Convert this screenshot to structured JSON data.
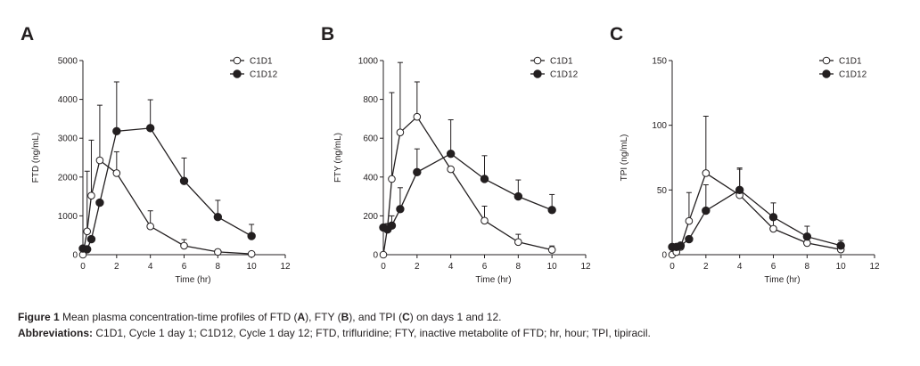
{
  "figure": {
    "caption": {
      "label": "Figure 1",
      "text_a": "Mean plasma concentration-time profiles of FTD (",
      "bold_a": "A",
      "text_b": "), FTY (",
      "bold_b": "B",
      "text_c": "), and TPI (",
      "bold_c": "C",
      "text_d": ") on days 1 and 12."
    },
    "abbreviations": {
      "label": "Abbreviations:",
      "text": "C1D1, Cycle 1 day 1; C1D12, Cycle 1 day 12; FTD, trifluridine; FTY, inactive metabolite of FTD; hr, hour; TPI, tipiracil."
    }
  },
  "colors": {
    "ink": "#231f20",
    "background": "#ffffff"
  },
  "chart_data": [
    {
      "panel": "A",
      "type": "line",
      "title": "",
      "xlabel": "Time (hr)",
      "ylabel": "FTD (ng/mL)",
      "xlim": [
        0,
        12
      ],
      "ylim": [
        0,
        5000
      ],
      "xticks": [
        0,
        2,
        4,
        6,
        8,
        10,
        12
      ],
      "yticks": [
        0,
        1000,
        2000,
        3000,
        4000,
        5000
      ],
      "grid": false,
      "legend": "top-right",
      "series": [
        {
          "name": "C1D1",
          "marker": "open-circle",
          "x": [
            0,
            0.25,
            0.5,
            1,
            2,
            4,
            6,
            8,
            10
          ],
          "y": [
            0,
            600,
            1520,
            2430,
            2100,
            730,
            230,
            70,
            20
          ],
          "err": [
            0,
            1550,
            1430,
            1420,
            550,
            400,
            160,
            60,
            30
          ]
        },
        {
          "name": "C1D12",
          "marker": "filled-circle",
          "x": [
            0,
            0.25,
            0.5,
            1,
            2,
            4,
            6,
            8,
            10
          ],
          "y": [
            160,
            140,
            400,
            1340,
            3180,
            3260,
            1900,
            970,
            480
          ],
          "err": [
            0,
            0,
            0,
            0,
            1270,
            730,
            590,
            430,
            300
          ]
        }
      ]
    },
    {
      "panel": "B",
      "type": "line",
      "title": "",
      "xlabel": "Time (hr)",
      "ylabel": "FTY (ng/mL)",
      "xlim": [
        0,
        12
      ],
      "ylim": [
        0,
        1000
      ],
      "xticks": [
        0,
        2,
        4,
        6,
        8,
        10,
        12
      ],
      "yticks": [
        0,
        200,
        400,
        600,
        800,
        1000
      ],
      "grid": false,
      "legend": "top-right",
      "series": [
        {
          "name": "C1D1",
          "marker": "open-circle",
          "x": [
            0,
            0.25,
            0.5,
            1,
            2,
            4,
            6,
            8,
            10
          ],
          "y": [
            0,
            140,
            390,
            630,
            710,
            440,
            175,
            65,
            25
          ],
          "err": [
            0,
            0,
            445,
            360,
            180,
            0,
            75,
            40,
            20
          ]
        },
        {
          "name": "C1D12",
          "marker": "filled-circle",
          "x": [
            0,
            0.25,
            0.5,
            1,
            2,
            4,
            6,
            8,
            10
          ],
          "y": [
            140,
            130,
            150,
            235,
            425,
            520,
            390,
            300,
            230
          ],
          "err": [
            0,
            30,
            50,
            110,
            120,
            175,
            120,
            85,
            80
          ]
        }
      ]
    },
    {
      "panel": "C",
      "type": "line",
      "title": "",
      "xlabel": "Time (hr)",
      "ylabel": "TPI (ng/mL)",
      "xlim": [
        0,
        12
      ],
      "ylim": [
        0,
        150
      ],
      "xticks": [
        0,
        2,
        4,
        6,
        8,
        10,
        12
      ],
      "yticks": [
        0,
        50,
        100,
        150
      ],
      "grid": false,
      "legend": "top-right",
      "series": [
        {
          "name": "C1D1",
          "marker": "open-circle",
          "x": [
            0,
            0.25,
            0.5,
            1,
            2,
            4,
            6,
            8,
            10
          ],
          "y": [
            0,
            2,
            6,
            26,
            63,
            46,
            20,
            9,
            4
          ],
          "err": [
            0,
            0,
            0,
            22,
            44,
            21,
            8,
            4,
            4
          ]
        },
        {
          "name": "C1D12",
          "marker": "filled-circle",
          "x": [
            0,
            0.25,
            0.5,
            1,
            2,
            4,
            6,
            8,
            10
          ],
          "y": [
            6,
            6,
            7,
            12,
            34,
            50,
            29,
            14,
            7
          ],
          "err": [
            0,
            0,
            0,
            0,
            20,
            16,
            11,
            8,
            4
          ]
        }
      ]
    }
  ]
}
